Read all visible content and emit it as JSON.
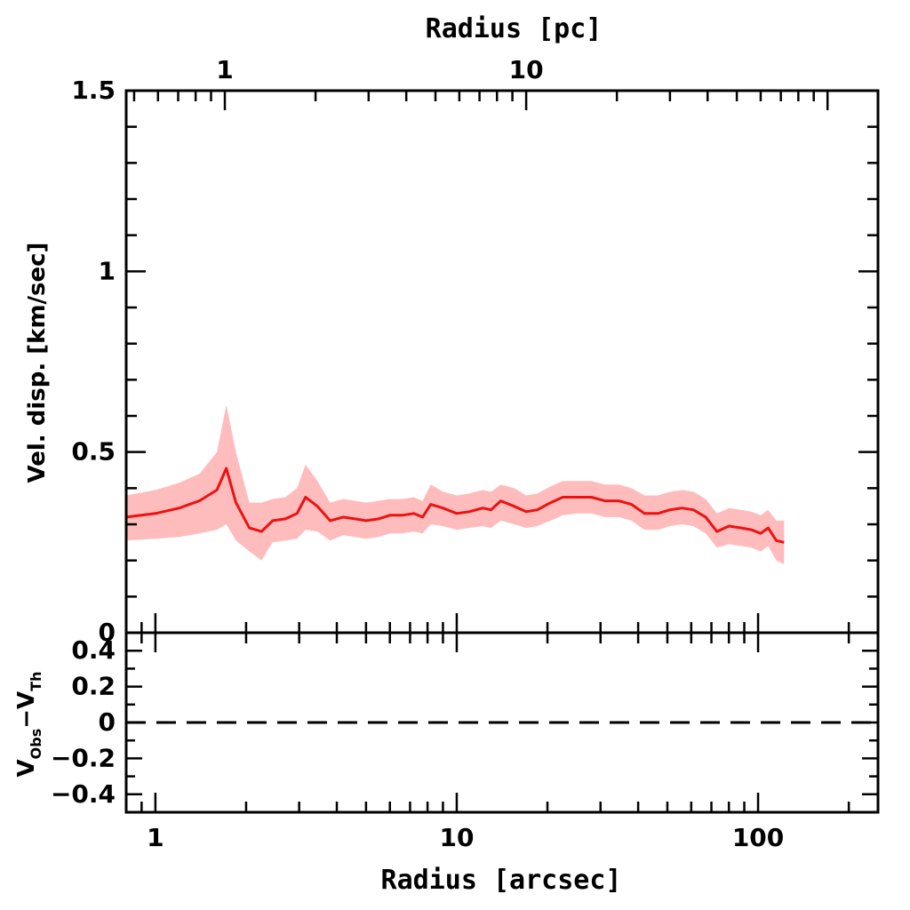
{
  "chart_data": {
    "type": "line",
    "top_panel": {
      "ylabel": "Vel. disp. [km/sec]",
      "ylim": [
        0,
        1.5
      ],
      "y_ticks": [
        "0",
        "0.5",
        "1",
        "1.5"
      ],
      "y_tick_values": [
        0,
        0.5,
        1,
        1.5
      ],
      "line_color": "#ee1111",
      "band_color": "#ffbcbc",
      "x": [
        0.8,
        1.0,
        1.2,
        1.4,
        1.6,
        1.72,
        1.85,
        2.05,
        2.25,
        2.45,
        2.7,
        2.95,
        3.15,
        3.45,
        3.8,
        4.2,
        4.6,
        5.0,
        5.5,
        6.0,
        6.6,
        7.2,
        7.7,
        8.2,
        9.0,
        10.0,
        11.0,
        12.2,
        13.0,
        14.0,
        15.5,
        17.0,
        18.5,
        20.5,
        22.5,
        25.0,
        28.0,
        31.0,
        34.5,
        38.0,
        42.0,
        46.5,
        51.0,
        56.0,
        61.0,
        67.0,
        73.0,
        80.0,
        88.0,
        95.0,
        102.0,
        108.0,
        115.0,
        122.0
      ],
      "y": [
        0.32,
        0.33,
        0.345,
        0.365,
        0.395,
        0.455,
        0.36,
        0.29,
        0.28,
        0.31,
        0.315,
        0.33,
        0.375,
        0.35,
        0.31,
        0.32,
        0.315,
        0.31,
        0.315,
        0.325,
        0.325,
        0.33,
        0.32,
        0.355,
        0.345,
        0.33,
        0.335,
        0.345,
        0.34,
        0.365,
        0.35,
        0.335,
        0.34,
        0.36,
        0.375,
        0.375,
        0.375,
        0.365,
        0.365,
        0.355,
        0.33,
        0.33,
        0.34,
        0.345,
        0.34,
        0.32,
        0.28,
        0.295,
        0.29,
        0.285,
        0.275,
        0.29,
        0.255,
        0.25
      ],
      "y_upper": [
        0.38,
        0.395,
        0.415,
        0.44,
        0.5,
        0.63,
        0.5,
        0.36,
        0.36,
        0.37,
        0.375,
        0.4,
        0.465,
        0.42,
        0.36,
        0.37,
        0.365,
        0.36,
        0.365,
        0.37,
        0.37,
        0.375,
        0.365,
        0.41,
        0.39,
        0.38,
        0.385,
        0.395,
        0.39,
        0.41,
        0.4,
        0.38,
        0.385,
        0.405,
        0.42,
        0.42,
        0.42,
        0.41,
        0.41,
        0.4,
        0.38,
        0.38,
        0.39,
        0.395,
        0.39,
        0.37,
        0.33,
        0.345,
        0.34,
        0.335,
        0.325,
        0.34,
        0.31,
        0.31
      ],
      "y_lower": [
        0.255,
        0.26,
        0.265,
        0.275,
        0.285,
        0.3,
        0.255,
        0.225,
        0.2,
        0.25,
        0.255,
        0.26,
        0.285,
        0.28,
        0.255,
        0.27,
        0.265,
        0.26,
        0.265,
        0.275,
        0.275,
        0.28,
        0.275,
        0.3,
        0.295,
        0.285,
        0.29,
        0.295,
        0.29,
        0.31,
        0.3,
        0.29,
        0.295,
        0.31,
        0.325,
        0.33,
        0.33,
        0.32,
        0.32,
        0.31,
        0.285,
        0.285,
        0.295,
        0.3,
        0.295,
        0.275,
        0.235,
        0.245,
        0.24,
        0.235,
        0.225,
        0.24,
        0.2,
        0.19
      ]
    },
    "bottom_panel": {
      "ylabel_main_1": "V",
      "ylabel_sub_1": "Obs",
      "ylabel_dash": "−",
      "ylabel_main_2": "V",
      "ylabel_sub_2": "Th",
      "ylim": [
        -0.5,
        0.5
      ],
      "y_ticks": [
        "0.4",
        "0.2",
        "0",
        "−0.2",
        "−0.4"
      ],
      "y_tick_values": [
        0.4,
        0.2,
        0,
        -0.2,
        -0.4
      ],
      "reference_line": 0,
      "reference_style": "dashed"
    },
    "x_axis": {
      "label": "Radius [arcsec]",
      "scale": "log",
      "xlim": [
        0.8,
        250
      ],
      "tick_labels": [
        "1",
        "10",
        "100"
      ],
      "tick_values": [
        1,
        10,
        100
      ]
    },
    "top_axis": {
      "label": "Radius [pc]",
      "tick_labels": [
        "1",
        "10"
      ],
      "tick_values_arcsec": [
        1.7,
        17
      ]
    }
  }
}
